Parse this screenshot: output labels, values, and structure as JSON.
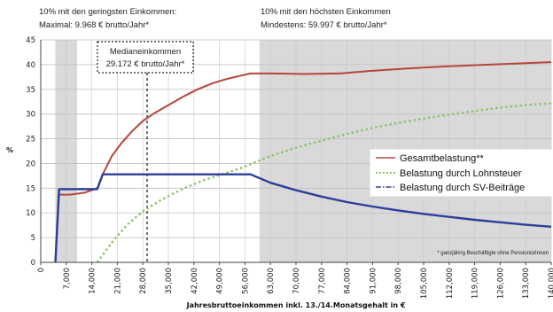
{
  "annotations": {
    "low_income_line1": "10% mit den geringsten Einkommen:",
    "low_income_line2": "Maximal: 9.968 € brutto/Jahr*",
    "high_income_line1": "10% mit den höchsten Einkommen",
    "high_income_line2": "Mindestens:  59.997 € brutto/Jahr*",
    "median_line1": "Medianeinkommen",
    "median_line2": "29.172 € brutto/Jahr*",
    "footnote": "* ganzjährig Beschäftigte ohne PensionistInnen"
  },
  "colors": {
    "gesamt": "#b5453a",
    "lohnsteuer": "#8cc46a",
    "sv": "#2a3f99",
    "shade": "#d9d9d9"
  },
  "chart_data": {
    "type": "line",
    "xlabel": "Jahresbruttoeinkommen inkl. 13./14.Monatsgehalt in €",
    "ylabel": "%",
    "xlim": [
      0,
      140000
    ],
    "ylim": [
      0,
      45
    ],
    "y_ticks": [
      0,
      5,
      10,
      15,
      20,
      25,
      30,
      35,
      40,
      45
    ],
    "x_ticks": [
      0,
      7000,
      14000,
      21000,
      28000,
      35000,
      42000,
      49000,
      56000,
      63000,
      70000,
      77000,
      84000,
      91000,
      98000,
      105000,
      112000,
      119000,
      126000,
      133000,
      140000
    ],
    "x_tick_labels": [
      "0",
      "7,000",
      "14,000",
      "21,000",
      "28,000",
      "35,000",
      "42,000",
      "49,000",
      "56,000",
      "63,000",
      "70,000",
      "77,000",
      "84,000",
      "91,000",
      "98,000",
      "105,000",
      "112,000",
      "119,000",
      "126,000",
      "133,000",
      "140,000"
    ],
    "shaded_regions": [
      [
        4000,
        9968
      ],
      [
        59997,
        140000
      ]
    ],
    "median_line_x": 29172,
    "grid": true,
    "legend_position": "right-middle",
    "series": [
      {
        "name": "Gesamtbelastung**",
        "color_key": "gesamt",
        "style": "solid",
        "points": [
          [
            4000,
            0
          ],
          [
            5000,
            13.7
          ],
          [
            8000,
            13.7
          ],
          [
            12000,
            14.1
          ],
          [
            15500,
            15.0
          ],
          [
            17000,
            17.8
          ],
          [
            19500,
            21.5
          ],
          [
            22000,
            24.0
          ],
          [
            25000,
            26.5
          ],
          [
            28000,
            28.6
          ],
          [
            31000,
            30.1
          ],
          [
            35000,
            31.8
          ],
          [
            39000,
            33.5
          ],
          [
            43000,
            35.0
          ],
          [
            47000,
            36.2
          ],
          [
            51000,
            37.1
          ],
          [
            55000,
            37.8
          ],
          [
            57500,
            38.2
          ],
          [
            64000,
            38.2
          ],
          [
            72000,
            38.1
          ],
          [
            82000,
            38.2
          ],
          [
            90000,
            38.7
          ],
          [
            100000,
            39.2
          ],
          [
            110000,
            39.6
          ],
          [
            120000,
            39.9
          ],
          [
            130000,
            40.2
          ],
          [
            140000,
            40.5
          ]
        ]
      },
      {
        "name": "Belastung durch Lohnsteuer",
        "color_key": "lohnsteuer",
        "style": "dotted",
        "points": [
          [
            15500,
            0
          ],
          [
            17000,
            1.5
          ],
          [
            20000,
            4.5
          ],
          [
            24000,
            7.8
          ],
          [
            28000,
            10.3
          ],
          [
            32000,
            12.2
          ],
          [
            36000,
            13.8
          ],
          [
            40000,
            15.2
          ],
          [
            45000,
            16.7
          ],
          [
            50000,
            17.9
          ],
          [
            55000,
            19.1
          ],
          [
            58000,
            20.0
          ],
          [
            63000,
            21.5
          ],
          [
            70000,
            23.2
          ],
          [
            77000,
            24.6
          ],
          [
            84000,
            26.0
          ],
          [
            91000,
            27.2
          ],
          [
            98000,
            28.2
          ],
          [
            105000,
            29.1
          ],
          [
            112000,
            29.9
          ],
          [
            119000,
            30.6
          ],
          [
            126000,
            31.3
          ],
          [
            133000,
            31.8
          ],
          [
            140000,
            32.2
          ]
        ]
      },
      {
        "name": "Belastung durch SV-Beiträge",
        "color_key": "sv",
        "style": "dashdot",
        "points": [
          [
            4000,
            0
          ],
          [
            5000,
            14.8
          ],
          [
            15500,
            14.8
          ],
          [
            17000,
            17.8
          ],
          [
            57500,
            17.8
          ],
          [
            63000,
            16.1
          ],
          [
            70000,
            14.6
          ],
          [
            77000,
            13.3
          ],
          [
            84000,
            12.2
          ],
          [
            91000,
            11.3
          ],
          [
            98000,
            10.5
          ],
          [
            105000,
            9.8
          ],
          [
            112000,
            9.2
          ],
          [
            119000,
            8.6
          ],
          [
            126000,
            8.1
          ],
          [
            133000,
            7.6
          ],
          [
            140000,
            7.2
          ]
        ]
      }
    ]
  }
}
